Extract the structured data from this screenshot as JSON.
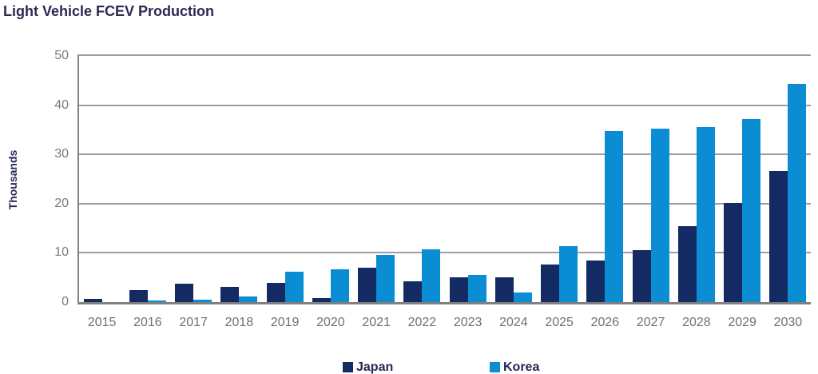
{
  "title": "Light Vehicle FCEV Production",
  "chart_data": {
    "type": "bar",
    "title": "Light Vehicle FCEV Production",
    "categories": [
      "2015",
      "2016",
      "2017",
      "2018",
      "2019",
      "2020",
      "2021",
      "2022",
      "2023",
      "2024",
      "2025",
      "2026",
      "2027",
      "2028",
      "2029",
      "2030"
    ],
    "series": [
      {
        "name": "Japan",
        "color": "#132A63",
        "values": [
          0.7,
          2.4,
          3.7,
          3.1,
          3.9,
          0.8,
          7.0,
          4.2,
          5.0,
          5.1,
          7.6,
          8.5,
          10.6,
          15.4,
          20.2,
          26.7
        ]
      },
      {
        "name": "Korea",
        "color": "#0A8DD2",
        "values": [
          0.05,
          0.3,
          0.5,
          1.1,
          6.1,
          6.6,
          9.5,
          10.7,
          5.6,
          1.9,
          11.4,
          34.8,
          35.3,
          35.5,
          37.2,
          44.3
        ]
      }
    ],
    "xlabel": "",
    "ylabel": "Thousands",
    "yticks": [
      0,
      10,
      20,
      30,
      40,
      50
    ],
    "ylim": [
      0,
      50
    ],
    "grid": true,
    "legend_position": "bottom"
  },
  "colors": {
    "japan_bar": "#132A63",
    "korea_bar": "#0A8DD2",
    "gridline": "#9E9E9E",
    "axis_line": "#808080",
    "tick_text": "#70707A",
    "heading_text": "#2A2A52"
  }
}
